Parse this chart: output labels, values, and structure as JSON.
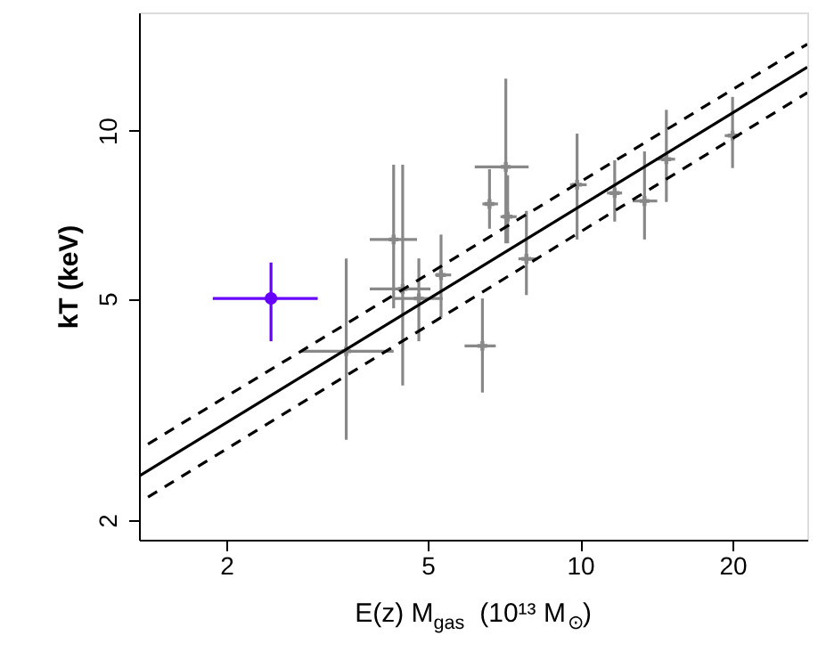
{
  "chart_data": {
    "type": "scatter",
    "xlabel": "E(z) M$_{gas}$  (10¹³ M$_{⊙}$)",
    "ylabel": "kT  (keV)",
    "log": "xy",
    "xlim": [
      1.344,
      28.1
    ],
    "ylim": [
      1.845,
      16.3
    ],
    "xticks": [
      2,
      5,
      10,
      20
    ],
    "yticks": [
      2,
      5,
      10
    ],
    "grid": false,
    "series": [
      {
        "marker": "cross",
        "color": "#888888",
        "x": [
          3.45,
          4.28,
          4.46,
          4.8,
          5.31,
          6.41,
          6.62,
          7.13,
          7.19,
          7.83,
          9.86,
          11.7,
          13.4,
          14.8,
          20.0
        ],
        "values": [
          4.02,
          6.38,
          5.2,
          5.0,
          5.51,
          4.11,
          7.39,
          8.61,
          7.01,
          5.89,
          8.0,
          7.73,
          7.48,
          8.89,
          9.8
        ],
        "errors": [
          [
            2.79,
            5.9
          ],
          [
            4.8,
            8.69
          ],
          [
            3.49,
            8.69
          ],
          [
            4.19,
            5.9
          ],
          [
            4.62,
            6.51
          ],
          [
            3.39,
            5.0
          ],
          [
            6.67,
            8.53
          ],
          [
            6.28,
            12.4
          ],
          [
            6.28,
            8.32
          ],
          [
            5.07,
            7.18
          ],
          [
            6.38,
            9.88
          ],
          [
            6.87,
            8.85
          ],
          [
            6.38,
            9.18
          ],
          [
            7.45,
            10.9
          ],
          [
            8.57,
            11.5
          ]
        ],
        "xerrors": [
          [
            2.81,
            4.28
          ],
          [
            3.84,
            4.76
          ],
          [
            3.84,
            5.06
          ],
          [
            4.26,
            5.35
          ],
          [
            5.17,
            5.56
          ],
          [
            5.91,
            6.81
          ],
          [
            6.41,
            6.88
          ],
          [
            6.19,
            7.91
          ],
          [
            6.96,
            7.49
          ],
          [
            7.55,
            8.24
          ],
          [
            9.55,
            10.3
          ],
          [
            11.3,
            12.1
          ],
          [
            12.7,
            14.2
          ],
          [
            14.1,
            15.4
          ],
          [
            19.3,
            20.6
          ]
        ]
      },
      {
        "marker": "circle",
        "color": "#6600ff",
        "x": [
          2.45
        ],
        "values": [
          5.0
        ],
        "errors": [
          [
            4.19,
            5.8
          ]
        ],
        "xerrors": [
          [
            1.88,
            3.03
          ]
        ]
      },
      {
        "type": "line",
        "line_style": "solid",
        "color": "#000000",
        "x": [
          1.344,
          28.1
        ],
        "values": [
          2.4,
          13.0
        ]
      },
      {
        "type": "line",
        "line_style": "dashed",
        "color": "#000000",
        "x": [
          1.4,
          28.1
        ],
        "values": [
          2.74,
          14.3
        ]
      },
      {
        "type": "line",
        "line_style": "dashed",
        "color": "#000000",
        "x": [
          1.4,
          28.1
        ],
        "values": [
          2.2,
          11.7
        ]
      }
    ]
  }
}
